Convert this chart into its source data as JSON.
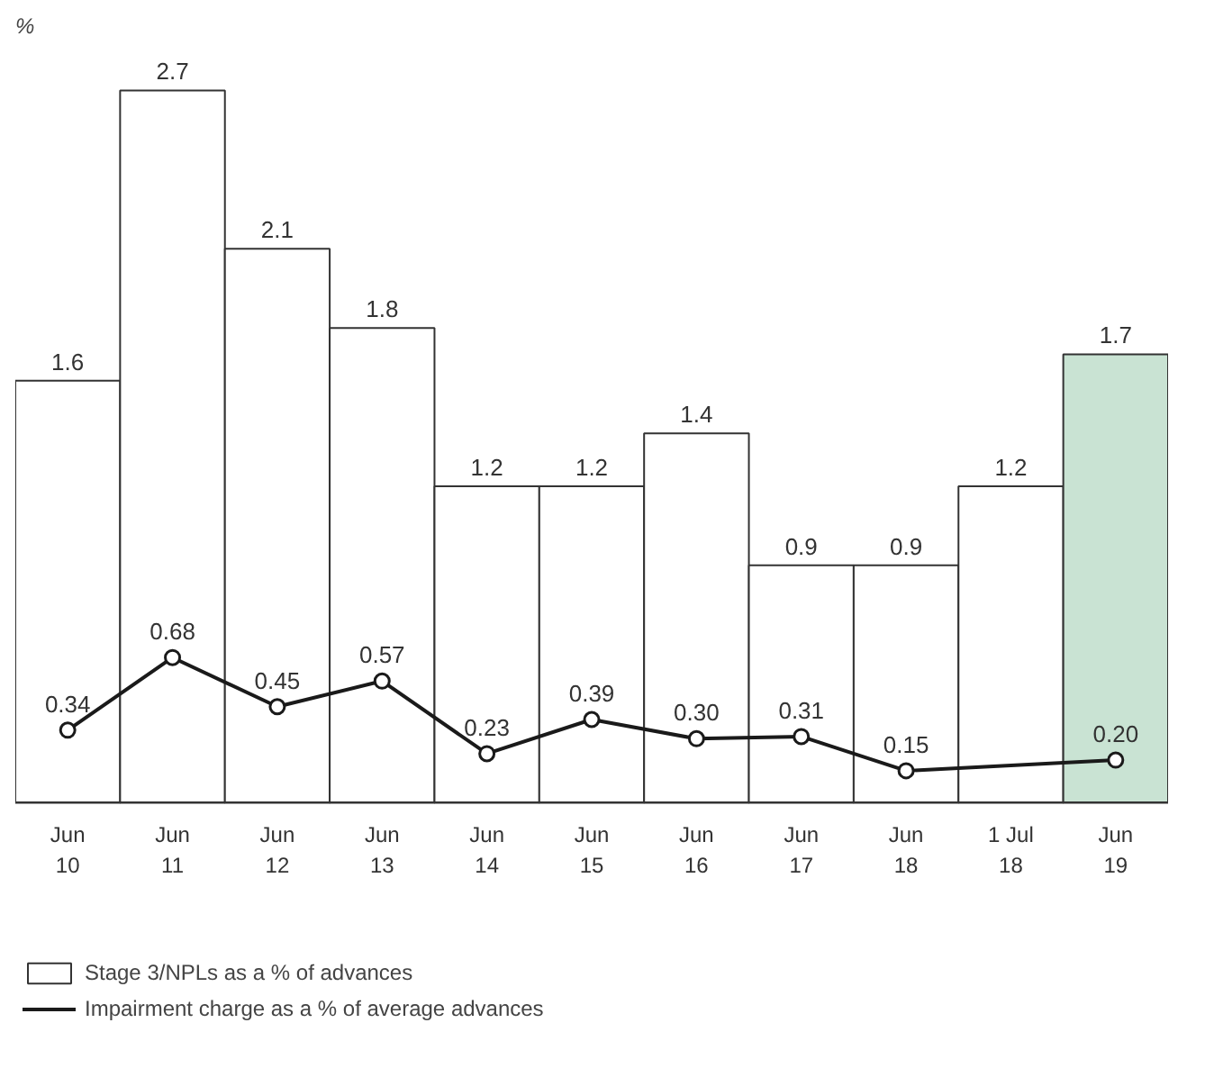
{
  "chart_data": {
    "type": "bar",
    "ylabel": "%",
    "categories": [
      "Jun\n10",
      "Jun\n11",
      "Jun\n12",
      "Jun\n13",
      "Jun\n14",
      "Jun\n15",
      "Jun\n16",
      "Jun\n17",
      "Jun\n18",
      "1 Jul\n18",
      "Jun\n19"
    ],
    "series": [
      {
        "name": "Stage 3/NPLs as a % of advances",
        "colors": [
          "#ffffff",
          "#ffffff",
          "#ffffff",
          "#ffffff",
          "#ffffff",
          "#ffffff",
          "#ffffff",
          "#ffffff",
          "#ffffff",
          "#ffffff",
          "#c9e3d3"
        ],
        "values": [
          1.6,
          2.7,
          2.1,
          1.8,
          1.2,
          1.2,
          1.4,
          0.9,
          0.9,
          1.2,
          1.7
        ],
        "value_labels": [
          "1.6",
          "2.7",
          "2.1",
          "1.8",
          "1.2",
          "1.2",
          "1.4",
          "0.9",
          "0.9",
          "1.2",
          "1.7"
        ]
      },
      {
        "name": "Impairment charge as a % of average advances",
        "type": "line",
        "axis": "y2",
        "color": "#1a1a1a",
        "values": [
          0.34,
          0.68,
          0.45,
          0.57,
          0.23,
          0.39,
          0.3,
          0.31,
          0.15,
          null,
          0.2
        ],
        "value_labels": [
          "0.34",
          "0.68",
          "0.45",
          "0.57",
          "0.23",
          "0.39",
          "0.30",
          "0.31",
          "0.15",
          null,
          "0.20"
        ]
      }
    ],
    "data_labels": true,
    "marker": "circle",
    "line_style": "solid",
    "grid": false,
    "legend": "bottom left"
  }
}
